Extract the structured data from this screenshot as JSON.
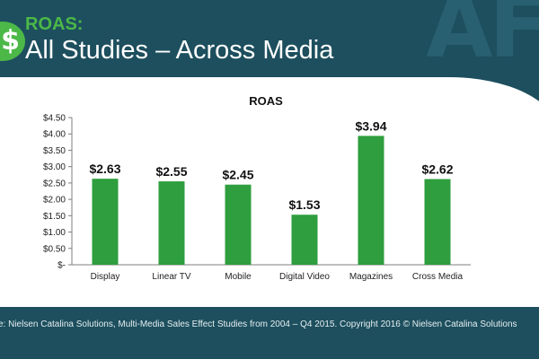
{
  "slide": {
    "icon": "dollar-icon",
    "icon_glyph": "$",
    "kicker": "ROAS:",
    "title": "All Studies – Across Media",
    "footer": "e: Nielsen Catalina Solutions, Multi-Media Sales Effect Studies from 2004 – Q4 2015. Copyright 2016 © Nielsen Catalina Solutions",
    "colors": {
      "background": "#1d4f5e",
      "accent": "#4cb848",
      "bar": "#2e9e3e"
    }
  },
  "chart_data": {
    "type": "bar",
    "title": "ROAS",
    "categories": [
      "Display",
      "Linear TV",
      "Mobile",
      "Digital Video",
      "Magazines",
      "Cross Media"
    ],
    "values": [
      2.63,
      2.55,
      2.45,
      1.53,
      3.94,
      2.62
    ],
    "data_labels": [
      "$2.63",
      "$2.55",
      "$2.45",
      "$1.53",
      "$3.94",
      "$2.62"
    ],
    "yticks": [
      0,
      0.5,
      1,
      1.5,
      2,
      2.5,
      3,
      3.5,
      4,
      4.5
    ],
    "ytick_labels": [
      "$-",
      "$0.50",
      "$1.00",
      "$1.50",
      "$2.00",
      "$2.50",
      "$3.00",
      "$3.50",
      "$4.00",
      "$4.50"
    ],
    "ylim": [
      0,
      4.5
    ],
    "xlabel": "",
    "ylabel": "",
    "grid": false,
    "legend": "none"
  }
}
